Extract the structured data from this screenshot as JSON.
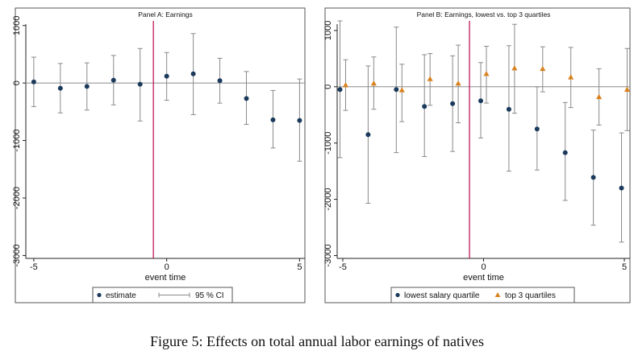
{
  "figure": {
    "caption": "Figure 5: Effects on total annual labor earnings of natives"
  },
  "colors": {
    "navy": "#1b3a5c",
    "orange": "#d9821f",
    "ci": "#8a8a8a",
    "vline": "#c2185b",
    "zero": "#8a8a8a"
  },
  "chart_data": [
    {
      "type": "scatter",
      "title": "Panel A: Earnings",
      "xlabel": "event time",
      "ylabel": "",
      "xlim": [
        -5.3,
        5.2
      ],
      "ylim": [
        -3050,
        1080
      ],
      "xticks": [
        -5,
        0,
        5
      ],
      "xtick_labels": [
        "-5",
        "0",
        "5"
      ],
      "yticks": [
        1000,
        0,
        -1000,
        -2000,
        -3000
      ],
      "ytick_labels": [
        "1000",
        "0",
        "-1000",
        "-2000",
        "-3000"
      ],
      "vline": -0.5,
      "hline": 0,
      "legend_position": "bottom",
      "legend": [
        {
          "label": "estimate",
          "kind": "dot"
        },
        {
          "label": "95 % CI",
          "kind": "ci"
        }
      ],
      "series": [
        {
          "name": "estimate",
          "marker": "circle",
          "color": "navy",
          "x": [
            -5,
            -4,
            -3,
            -2,
            -1,
            0,
            1,
            2,
            3,
            4,
            5
          ],
          "values": [
            20,
            -90,
            -60,
            50,
            -20,
            120,
            160,
            40,
            -270,
            -640,
            -650
          ],
          "ci_low": [
            -410,
            -520,
            -470,
            -380,
            -660,
            -300,
            -550,
            -350,
            -720,
            -1130,
            -1360
          ],
          "ci_high": [
            450,
            340,
            350,
            480,
            600,
            530,
            860,
            430,
            200,
            -130,
            70
          ]
        }
      ]
    },
    {
      "type": "scatter",
      "title": "Panel B: Earnings, lowest vs. top 3 quartiles",
      "xlabel": "event time",
      "ylabel": "",
      "xlim": [
        -5.2,
        5.2
      ],
      "ylim": [
        -3050,
        1170
      ],
      "xticks": [
        -5,
        0,
        5
      ],
      "xtick_labels": [
        "-5",
        "0",
        "5"
      ],
      "yticks": [
        1000,
        0,
        -1000,
        -2000,
        -3000
      ],
      "ytick_labels": [
        "1000",
        "0",
        "-1000",
        "-2000",
        "-3000"
      ],
      "vline": -0.5,
      "hline": 0,
      "legend_position": "bottom",
      "legend": [
        {
          "label": "lowest salary quartile",
          "kind": "dot"
        },
        {
          "label": "top 3 quartiles",
          "kind": "triangle"
        }
      ],
      "series": [
        {
          "name": "lowest salary quartile",
          "marker": "circle",
          "color": "navy",
          "x": [
            -5,
            -4,
            -3,
            -2,
            -1,
            0,
            1,
            2,
            3,
            4,
            5
          ],
          "values": [
            -50,
            -850,
            -50,
            -350,
            -300,
            -250,
            -400,
            -750,
            -1170,
            -1610,
            -1800
          ],
          "ci_low": [
            -1260,
            -2070,
            -1170,
            -1240,
            -1150,
            -910,
            -1500,
            -1480,
            -2020,
            -2460,
            -2760
          ],
          "ci_high": [
            1170,
            370,
            1060,
            570,
            550,
            430,
            730,
            0,
            -280,
            -770,
            -820
          ]
        },
        {
          "name": "top 3 quartiles",
          "marker": "triangle",
          "color": "orange",
          "x": [
            -5,
            -4,
            -3,
            -2,
            -1,
            0,
            1,
            2,
            3,
            4,
            5
          ],
          "values": [
            30,
            60,
            -60,
            140,
            60,
            230,
            330,
            320,
            170,
            -180,
            -50
          ],
          "ci_low": [
            -420,
            -400,
            -620,
            -330,
            -640,
            -290,
            -470,
            -90,
            -370,
            -680,
            -780
          ],
          "ci_high": [
            480,
            530,
            400,
            590,
            740,
            720,
            1110,
            710,
            700,
            320,
            680
          ]
        }
      ]
    }
  ]
}
